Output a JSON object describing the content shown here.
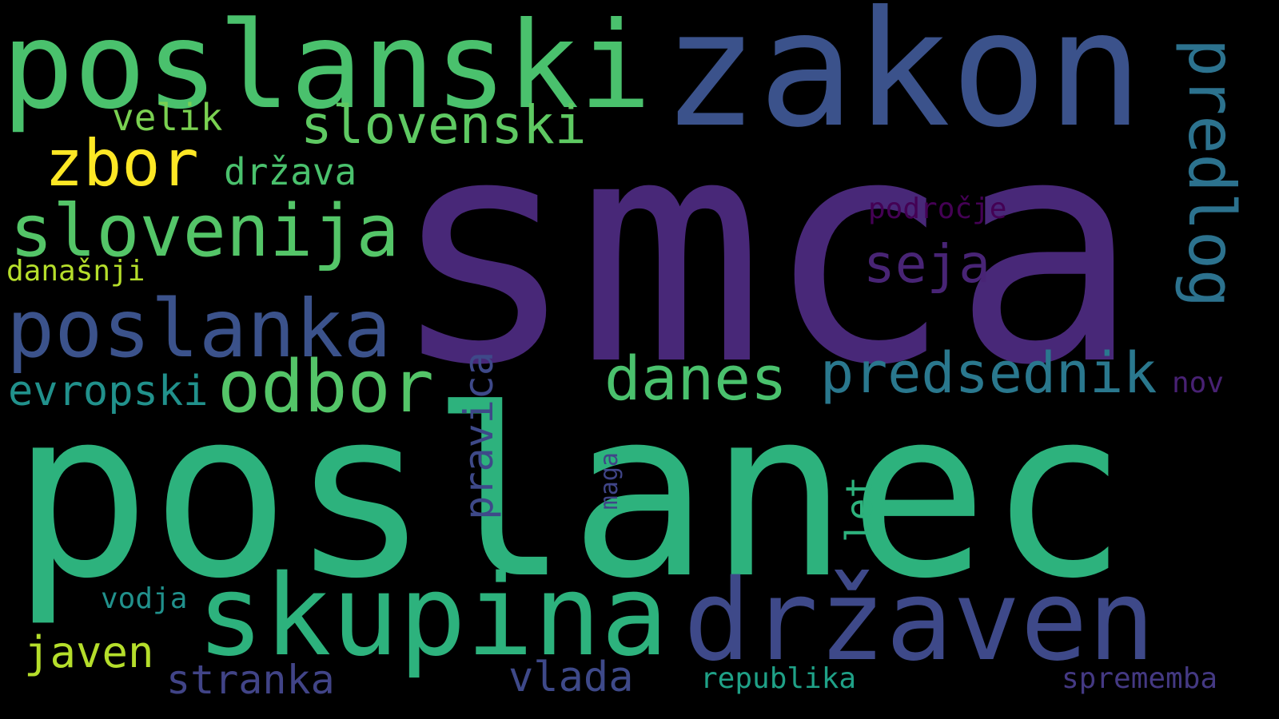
{
  "background": "#000000",
  "words": [
    {
      "text": "smca",
      "color": "#482878"
    },
    {
      "text": "poslanec",
      "color": "#2db27d"
    },
    {
      "text": "zakon",
      "color": "#3b528b"
    },
    {
      "text": "poslanski",
      "color": "#4ac16d"
    },
    {
      "text": "skupina",
      "color": "#2db27d"
    },
    {
      "text": "državen",
      "color": "#3e4989"
    },
    {
      "text": "poslanka",
      "color": "#3b528b"
    },
    {
      "text": "slovenija",
      "color": "#54c568"
    },
    {
      "text": "odbor",
      "color": "#54c568"
    },
    {
      "text": "predlog",
      "color": "#2c728e"
    },
    {
      "text": "zbor",
      "color": "#fde725"
    },
    {
      "text": "slovenski",
      "color": "#5ec962"
    },
    {
      "text": "predsednik",
      "color": "#2a788e"
    },
    {
      "text": "danes",
      "color": "#4ac16d"
    },
    {
      "text": "seja",
      "color": "#482475"
    },
    {
      "text": "evropski",
      "color": "#21918c"
    },
    {
      "text": "javen",
      "color": "#b5de2b"
    },
    {
      "text": "država",
      "color": "#4ac16d"
    },
    {
      "text": "velik",
      "color": "#7ad151"
    },
    {
      "text": "pravica",
      "color": "#3e4989"
    },
    {
      "text": "stranka",
      "color": "#414487"
    },
    {
      "text": "vlada",
      "color": "#3e4989"
    },
    {
      "text": "let",
      "color": "#2db27d"
    },
    {
      "text": "vodja",
      "color": "#21918c"
    },
    {
      "text": "republika",
      "color": "#1fa187"
    },
    {
      "text": "sprememba",
      "color": "#443983"
    },
    {
      "text": "področje",
      "color": "#440154"
    },
    {
      "text": "današnji",
      "color": "#b5de2b"
    },
    {
      "text": "maga",
      "color": "#404588"
    },
    {
      "text": "nov",
      "color": "#482173"
    }
  ]
}
